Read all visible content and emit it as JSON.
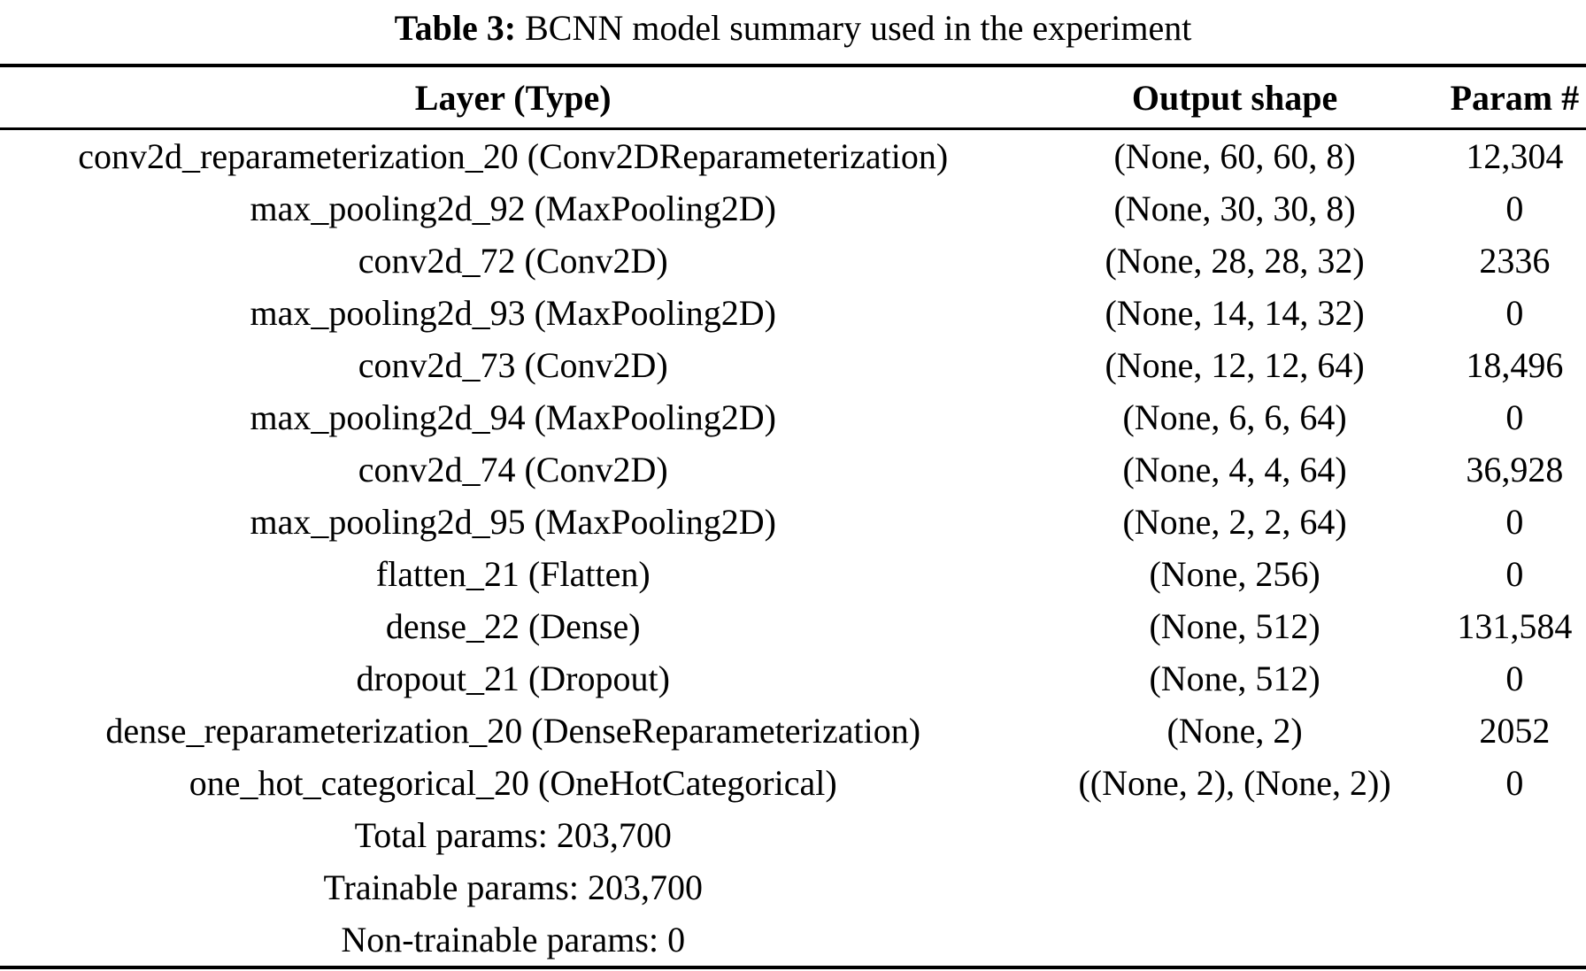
{
  "caption": {
    "label": "Table 3:",
    "text": "BCNN model summary used in the experiment"
  },
  "table": {
    "columns": [
      "Layer (Type)",
      "Output shape",
      "Param #"
    ],
    "rows": [
      [
        "conv2d_reparameterization_20 (Conv2DReparameterization)",
        "(None, 60, 60, 8)",
        "12,304"
      ],
      [
        "max_pooling2d_92 (MaxPooling2D)",
        "(None, 30, 30, 8)",
        "0"
      ],
      [
        "conv2d_72 (Conv2D)",
        "(None, 28, 28, 32)",
        "2336"
      ],
      [
        "max_pooling2d_93 (MaxPooling2D)",
        "(None, 14, 14, 32)",
        "0"
      ],
      [
        "conv2d_73 (Conv2D)",
        "(None, 12, 12, 64)",
        "18,496"
      ],
      [
        "max_pooling2d_94 (MaxPooling2D)",
        "(None, 6, 6, 64)",
        "0"
      ],
      [
        "conv2d_74 (Conv2D)",
        "(None, 4, 4, 64)",
        "36,928"
      ],
      [
        "max_pooling2d_95 (MaxPooling2D)",
        "(None, 2, 2, 64)",
        "0"
      ],
      [
        "flatten_21 (Flatten)",
        "(None, 256)",
        "0"
      ],
      [
        "dense_22 (Dense)",
        "(None, 512)",
        "131,584"
      ],
      [
        "dropout_21 (Dropout)",
        "(None, 512)",
        "0"
      ],
      [
        "dense_reparameterization_20 (DenseReparameterization)",
        "(None, 2)",
        "2052"
      ],
      [
        "one_hot_categorical_20 (OneHotCategorical)",
        "((None, 2), (None, 2))",
        "0"
      ]
    ],
    "summary": [
      "Total params: 203,700",
      "Trainable params: 203,700",
      "Non-trainable params: 0"
    ]
  },
  "colors": {
    "text": "#000000",
    "background": "#ffffff",
    "rule": "#000000"
  }
}
